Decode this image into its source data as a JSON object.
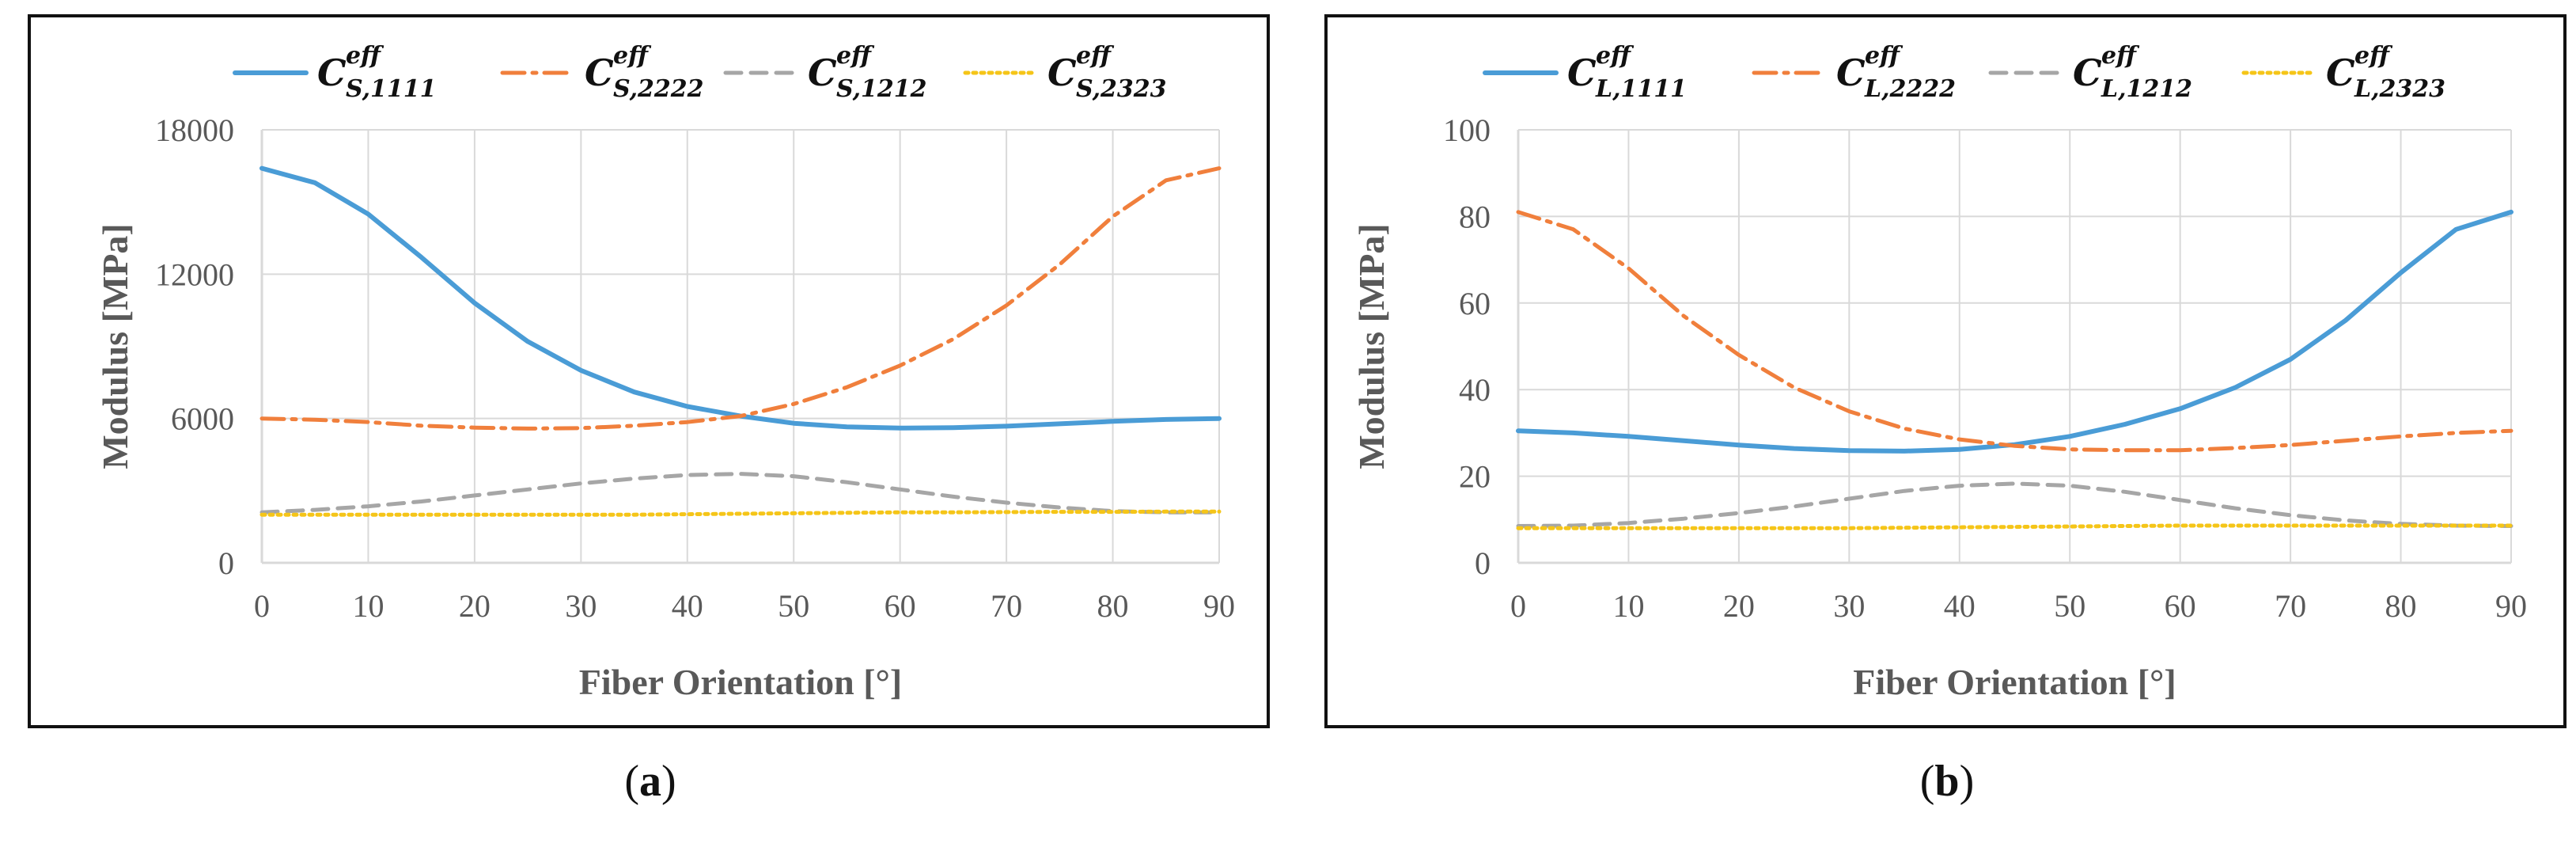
{
  "captions": [
    {
      "pre": "(",
      "letter": "a",
      "post": ")"
    },
    {
      "pre": "(",
      "letter": "b",
      "post": ")"
    }
  ],
  "colors": {
    "C1111": "#4a9cd6",
    "C2222": "#f07f3c",
    "C1212": "#a6a6a6",
    "C2323": "#f5c518",
    "grid": "#d9d9d9",
    "text": "#595959"
  },
  "chart_data": [
    {
      "type": "line",
      "panel": "a",
      "title": "",
      "xlabel": "Fiber Orientation [°]",
      "ylabel": "Modulus [MPa]",
      "xlim": [
        0,
        90
      ],
      "ylim": [
        0,
        18000
      ],
      "xticks": [
        0,
        10,
        20,
        30,
        40,
        50,
        60,
        70,
        80,
        90
      ],
      "yticks": [
        0,
        6000,
        12000,
        18000
      ],
      "legend_position": "top",
      "x": [
        0,
        5,
        10,
        15,
        20,
        25,
        30,
        35,
        40,
        45,
        50,
        55,
        60,
        65,
        70,
        75,
        80,
        85,
        90
      ],
      "series": [
        {
          "key": "C1111",
          "name": "C_S,1111^eff",
          "main": "C",
          "sub": "S,1111",
          "sup": "eff",
          "dash": "solid",
          "values": [
            16400,
            15800,
            14500,
            12700,
            10800,
            9200,
            8000,
            7100,
            6500,
            6100,
            5800,
            5650,
            5600,
            5620,
            5680,
            5780,
            5880,
            5960,
            6000
          ]
        },
        {
          "key": "C2222",
          "name": "C_S,2222^eff",
          "main": "C",
          "sub": "S,2222",
          "sup": "eff",
          "dash": "dashdot",
          "values": [
            6000,
            5950,
            5850,
            5700,
            5620,
            5580,
            5600,
            5700,
            5850,
            6100,
            6600,
            7300,
            8200,
            9300,
            10700,
            12400,
            14400,
            15900,
            16400
          ]
        },
        {
          "key": "C1212",
          "name": "C_S,1212^eff",
          "main": "C",
          "sub": "S,1212",
          "sup": "eff",
          "dash": "dash",
          "values": [
            2100,
            2200,
            2350,
            2550,
            2800,
            3050,
            3300,
            3500,
            3650,
            3700,
            3600,
            3350,
            3050,
            2750,
            2500,
            2300,
            2150,
            2100,
            2100
          ]
        },
        {
          "key": "C2323",
          "name": "C_S,2323^eff",
          "main": "C",
          "sub": "S,2323",
          "sup": "eff",
          "dash": "dot",
          "values": [
            2000,
            2000,
            2000,
            2000,
            2000,
            2000,
            2000,
            2000,
            2020,
            2040,
            2060,
            2080,
            2100,
            2100,
            2110,
            2120,
            2120,
            2130,
            2130
          ]
        }
      ]
    },
    {
      "type": "line",
      "panel": "b",
      "title": "",
      "xlabel": "Fiber Orientation [°]",
      "ylabel": "Modulus [MPa]",
      "xlim": [
        0,
        90
      ],
      "ylim": [
        0,
        100
      ],
      "xticks": [
        0,
        10,
        20,
        30,
        40,
        50,
        60,
        70,
        80,
        90
      ],
      "yticks": [
        0,
        20,
        40,
        60,
        80,
        100
      ],
      "legend_position": "top",
      "x": [
        0,
        5,
        10,
        15,
        20,
        25,
        30,
        35,
        40,
        45,
        50,
        55,
        60,
        65,
        70,
        75,
        80,
        85,
        90
      ],
      "series": [
        {
          "key": "C1111",
          "name": "C_L,1111^eff",
          "main": "C",
          "sub": "L,1111",
          "sup": "eff",
          "dash": "solid",
          "values": [
            30.5,
            30.0,
            29.2,
            28.2,
            27.2,
            26.4,
            25.9,
            25.8,
            26.2,
            27.3,
            29.2,
            32.0,
            35.6,
            40.5,
            47.0,
            56.0,
            67.0,
            77.0,
            81.0
          ]
        },
        {
          "key": "C2222",
          "name": "C_L,2222^eff",
          "main": "C",
          "sub": "L,2222",
          "sup": "eff",
          "dash": "dashdot",
          "values": [
            81.0,
            77.0,
            68.0,
            57.0,
            48.0,
            40.5,
            35.0,
            31.0,
            28.5,
            27.0,
            26.2,
            26.0,
            26.0,
            26.5,
            27.2,
            28.2,
            29.2,
            30.0,
            30.5
          ]
        },
        {
          "key": "C1212",
          "name": "C_L,1212^eff",
          "main": "C",
          "sub": "L,1212",
          "sup": "eff",
          "dash": "dash",
          "values": [
            8.5,
            8.6,
            9.2,
            10.2,
            11.5,
            13.0,
            14.8,
            16.6,
            17.8,
            18.3,
            17.8,
            16.4,
            14.5,
            12.6,
            11.0,
            9.8,
            9.0,
            8.6,
            8.5
          ]
        },
        {
          "key": "C2323",
          "name": "C_L,2323^eff",
          "main": "C",
          "sub": "L,2323",
          "sup": "eff",
          "dash": "dot",
          "values": [
            8.0,
            8.0,
            8.0,
            8.0,
            8.0,
            8.0,
            8.0,
            8.1,
            8.2,
            8.3,
            8.4,
            8.5,
            8.6,
            8.6,
            8.6,
            8.6,
            8.6,
            8.6,
            8.6
          ]
        }
      ]
    }
  ]
}
